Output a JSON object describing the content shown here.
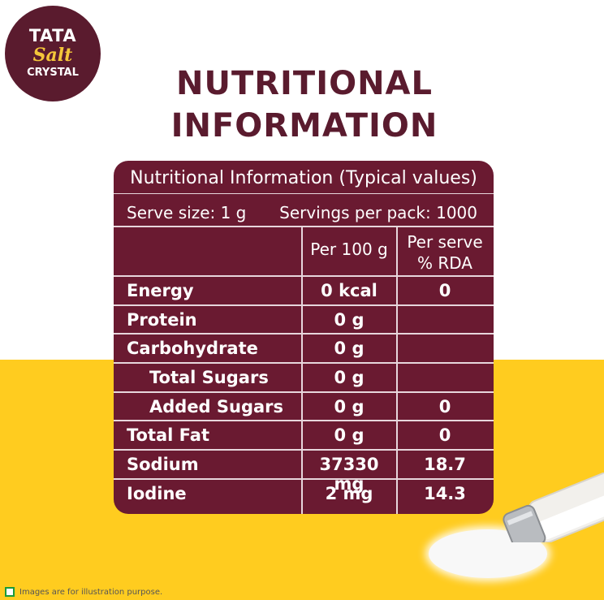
{
  "logo": {
    "line1": "TATA",
    "line2": "Salt",
    "line3": "CRYSTAL"
  },
  "heading": {
    "line1": "NUTRITIONAL",
    "line2": "INFORMATION"
  },
  "panel": {
    "title": "Nutritional Information (Typical values)",
    "serve_size": "Serve size: 1 g",
    "servings": "Servings per pack: 1000",
    "col_per100": "Per 100 g",
    "col_rda_1": "Per serve",
    "col_rda_2": "% RDA",
    "rows": [
      {
        "label": "Energy",
        "per100": "0 kcal",
        "rda": "0",
        "indent": false
      },
      {
        "label": "Protein",
        "per100": "0 g",
        "rda": "",
        "indent": false
      },
      {
        "label": "Carbohydrate",
        "per100": "0 g",
        "rda": "",
        "indent": false
      },
      {
        "label": "Total Sugars",
        "per100": "0 g",
        "rda": "",
        "indent": true
      },
      {
        "label": "Added Sugars",
        "per100": "0 g",
        "rda": "0",
        "indent": true
      },
      {
        "label": "Total Fat",
        "per100": "0 g",
        "rda": "0",
        "indent": false
      },
      {
        "label": "Sodium",
        "per100": "37330 mg",
        "rda": "18.7",
        "indent": false
      },
      {
        "label": "Iodine",
        "per100": "2 mg",
        "rda": "14.3",
        "indent": false
      }
    ]
  },
  "footer": {
    "disclaimer": "Images are for illustration purpose."
  },
  "colors": {
    "maroon": "#6a1a31",
    "yellow": "#ffcc1f",
    "veg_mark": "#1a9a3a"
  }
}
